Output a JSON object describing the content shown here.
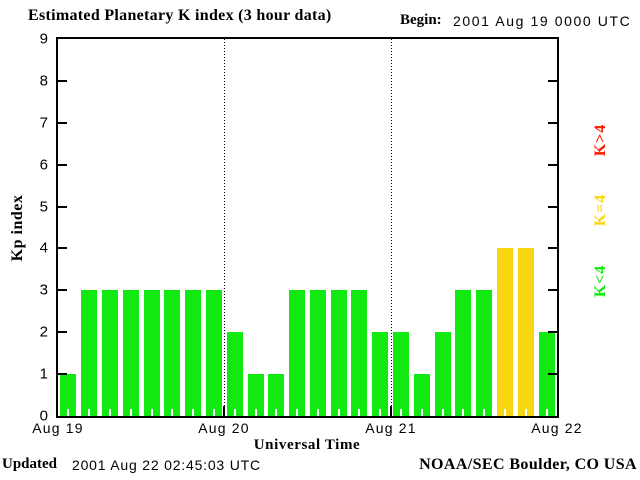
{
  "header": {
    "title": "Estimated Planetary K index (3 hour data)",
    "begin_label": "Begin:",
    "begin_value": "2001 Aug 19 0000 UTC"
  },
  "footer": {
    "updated_label": "Updated",
    "updated_value": "2001 Aug 22 02:45:03 UTC",
    "credit": "NOAA/SEC Boulder, CO USA"
  },
  "legend": [
    {
      "label": "K>4",
      "color": "#ff1a00"
    },
    {
      "label": "K=4",
      "color": "#f9d612"
    },
    {
      "label": "K<4",
      "color": "#12e812"
    }
  ],
  "chart_data": {
    "type": "bar",
    "title": "Estimated Planetary K index (3 hour data)",
    "begin": "2001 Aug 19 0000 UTC",
    "xlabel": "Universal Time",
    "ylabel": "Kp index",
    "ylim": [
      0,
      9
    ],
    "y_tick_labels": [
      "0",
      "1",
      "2",
      "3",
      "4",
      "5",
      "6",
      "7",
      "8",
      "9"
    ],
    "x_tick_labels": [
      "Aug 19",
      "Aug 20",
      "Aug 21",
      "Aug 22"
    ],
    "bar_interval_hours": 3,
    "bars_per_day": 8,
    "grid": "dotted vertical lines at day boundaries",
    "values": [
      1,
      3,
      3,
      3,
      3,
      3,
      3,
      3,
      2,
      1,
      1,
      3,
      3,
      3,
      3,
      2,
      2,
      1,
      2,
      3,
      3,
      4,
      4,
      2
    ],
    "values_by_day": {
      "Aug 19": [
        1,
        3,
        3,
        3,
        3,
        3,
        3,
        3
      ],
      "Aug 20": [
        2,
        1,
        1,
        3,
        3,
        3,
        3,
        2
      ],
      "Aug 21": [
        2,
        1,
        2,
        3,
        3,
        4,
        4,
        2
      ]
    },
    "color_rule": {
      "k_lt_4": "#12e812",
      "k_eq_4": "#f9d612",
      "k_gt_4": "#ff1a00"
    }
  }
}
